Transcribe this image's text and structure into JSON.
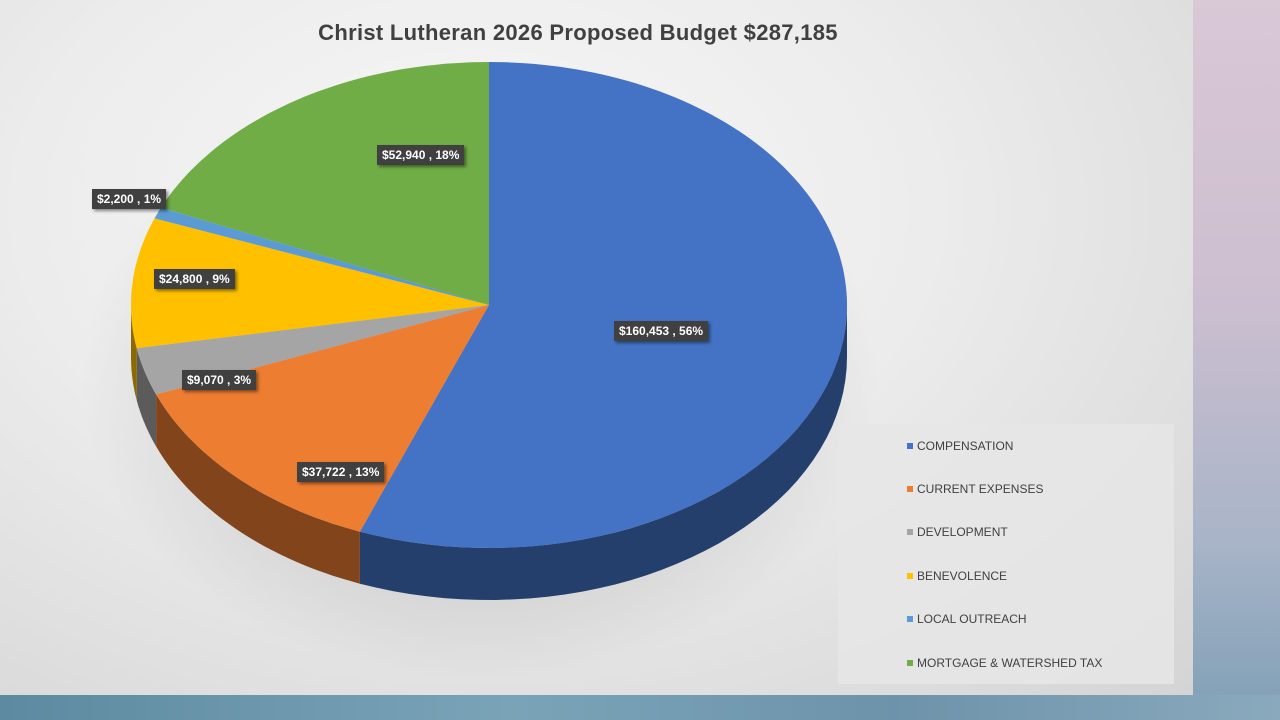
{
  "chart_data": {
    "type": "pie",
    "title": "Christ Lutheran 2026 Proposed Budget  $287,185",
    "legend_position": "bottom-right",
    "slices": [
      {
        "name": "COMPENSATION",
        "value": 160453,
        "percent": 56,
        "label": "$160,453 , 56%",
        "color": "#4472c4"
      },
      {
        "name": "CURRENT EXPENSES",
        "value": 37722,
        "percent": 13,
        "label": "$37,722 , 13%",
        "color": "#ed7d31"
      },
      {
        "name": "DEVELOPMENT",
        "value": 9070,
        "percent": 3,
        "label": "$9,070 , 3%",
        "color": "#a5a5a5"
      },
      {
        "name": "BENEVOLENCE",
        "value": 24800,
        "percent": 9,
        "label": "$24,800 , 9%",
        "color": "#ffc000"
      },
      {
        "name": "LOCAL OUTREACH",
        "value": 2200,
        "percent": 1,
        "label": "$2,200 , 1%",
        "color": "#5b9bd5"
      },
      {
        "name": "MORTGAGE & WATERSHED TAX",
        "value": 52940,
        "percent": 18,
        "label": "$52,940 , 18%",
        "color": "#70ad47"
      }
    ]
  }
}
